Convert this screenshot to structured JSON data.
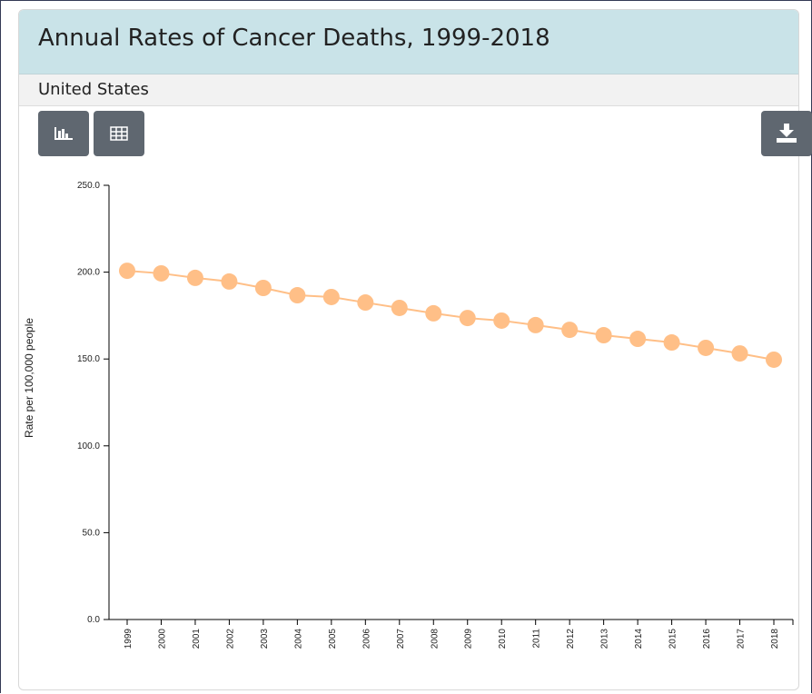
{
  "header": {
    "title": "Annual Rates of Cancer Deaths, 1999-2018",
    "subtitle": "United States"
  },
  "chart_data": {
    "type": "line",
    "ylabel": "Rate per 100,000 people",
    "categories": [
      "1999",
      "2000",
      "2001",
      "2002",
      "2003",
      "2004",
      "2005",
      "2006",
      "2007",
      "2008",
      "2009",
      "2010",
      "2011",
      "2012",
      "2013",
      "2014",
      "2015",
      "2016",
      "2017",
      "2018"
    ],
    "values": [
      200.8,
      199.3,
      196.7,
      194.6,
      190.9,
      186.7,
      185.7,
      182.5,
      179.4,
      176.3,
      173.6,
      172.1,
      169.5,
      166.8,
      163.7,
      161.6,
      159.5,
      156.4,
      153.2,
      149.6
    ],
    "color": "#ffbf87",
    "ylim": [
      0,
      250
    ],
    "yticks": [
      {
        "value": 0,
        "label": "0.0"
      },
      {
        "value": 50,
        "label": "50.0"
      },
      {
        "value": 100,
        "label": "100.0"
      },
      {
        "value": 150,
        "label": "150.0"
      },
      {
        "value": 200,
        "label": "200.0"
      },
      {
        "value": 250,
        "label": "250.0"
      }
    ],
    "grid": false
  }
}
